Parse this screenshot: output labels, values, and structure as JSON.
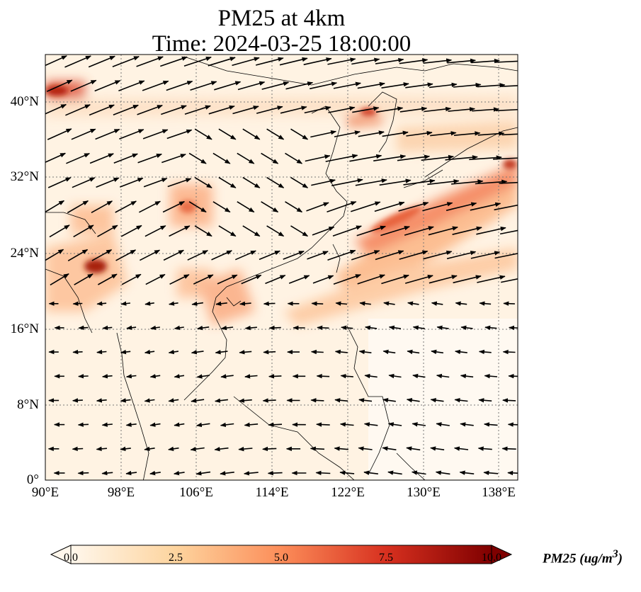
{
  "title_line1": "PM25 at 4km",
  "title_line2": "Time: 2024-03-25 18:00:00",
  "map": {
    "lon_range": [
      90,
      140
    ],
    "lat_range": [
      0,
      45
    ],
    "lon_ticks": [
      "90°E",
      "98°E",
      "106°E",
      "114°E",
      "122°E",
      "130°E",
      "138°E"
    ],
    "lat_ticks": [
      "0°",
      "8°N",
      "16°N",
      "24°N",
      "32°N",
      "40°N"
    ],
    "gridlines": true,
    "overlay": "wind vectors (arrows)"
  },
  "colorbar": {
    "label": "PM25 (ug/m",
    "label_sup": "3",
    "label_close": ")",
    "ticks": [
      "0.0",
      "2.5",
      "5.0",
      "7.5",
      "10.0"
    ],
    "range": [
      0,
      10
    ],
    "colormap": "OrRd",
    "extend": "both",
    "colors": [
      "#fff7ec",
      "#fdd49e",
      "#fc8d59",
      "#d7301f",
      "#7f0000"
    ]
  }
}
